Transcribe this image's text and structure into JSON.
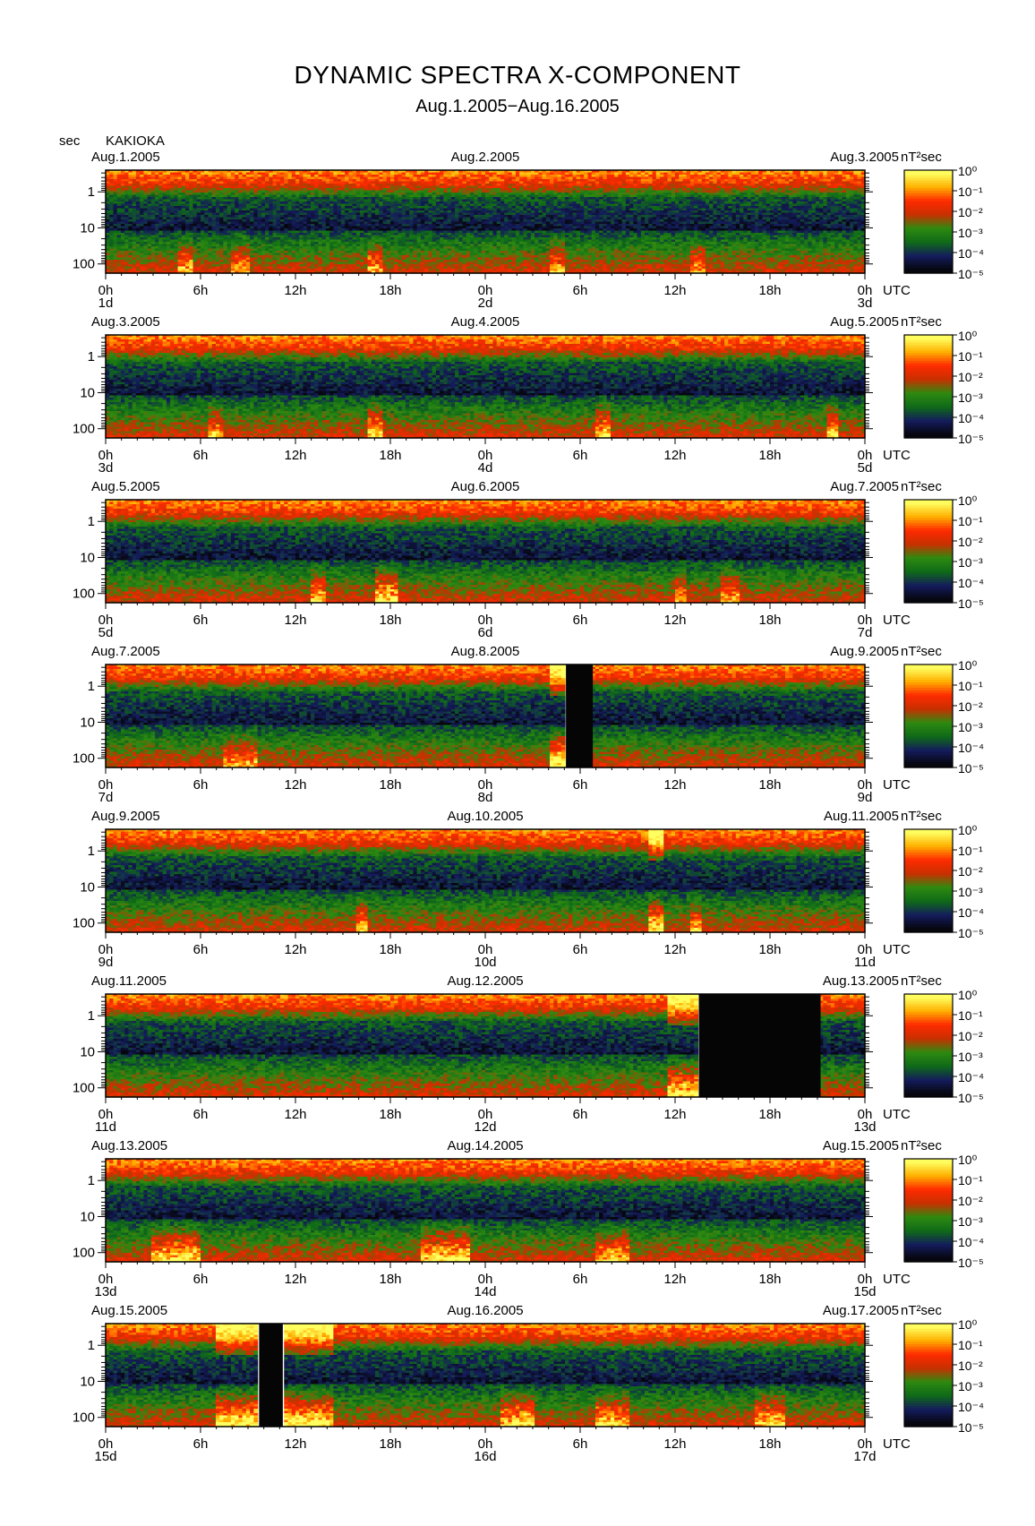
{
  "title": "DYNAMIC SPECTRA X-COMPONENT",
  "subtitle": "Aug.1.2005−Aug.16.2005",
  "y_unit": "sec",
  "station": "KAKIOKA",
  "colorbar_unit": "nT²sec",
  "x_suffix": "UTC",
  "chart_data": {
    "type": "heatmap",
    "title": "DYNAMIC SPECTRA X-COMPONENT",
    "subtitle": "Aug.1.2005−Aug.16.2005",
    "ylabel": "sec",
    "y_scale": "log",
    "y_ticks": [
      "1",
      "10",
      "100"
    ],
    "x_ticks": [
      "0h",
      "6h",
      "12h",
      "18h",
      "0h",
      "6h",
      "12h",
      "18h",
      "0h"
    ],
    "colorbar": {
      "unit": "nT²sec",
      "scale": "log",
      "labels": [
        "10⁰",
        "10⁻¹",
        "10⁻²",
        "10⁻³",
        "10⁻⁴",
        "10⁻⁵"
      ],
      "colors": [
        "#ffff60",
        "#ffb000",
        "#ff2a00",
        "#c83000",
        "#2e8a10",
        "#0f6a18",
        "#141c5c",
        "#06060e"
      ]
    },
    "panels": [
      {
        "start_label": "Aug.1.2005",
        "mid_label": "Aug.2.2005",
        "end_label": "Aug.3.2005",
        "day_labels": [
          "1d",
          "2d",
          "3d"
        ],
        "gaps": [],
        "events": [
          [
            4.5,
            5.5,
            0.7
          ],
          [
            8,
            9,
            0.6
          ],
          [
            16.5,
            17.5,
            0.7
          ],
          [
            28,
            29,
            0.6
          ],
          [
            37,
            38,
            0.6
          ]
        ]
      },
      {
        "start_label": "Aug.3.2005",
        "mid_label": "Aug.4.2005",
        "end_label": "Aug.5.2005",
        "day_labels": [
          "3d",
          "4d",
          "5d"
        ],
        "gaps": [],
        "events": [
          [
            6.5,
            7.5,
            0.6
          ],
          [
            16.5,
            17.5,
            0.9
          ],
          [
            31,
            31.8,
            0.8
          ],
          [
            45.5,
            46.3,
            0.8
          ]
        ]
      },
      {
        "start_label": "Aug.5.2005",
        "mid_label": "Aug.6.2005",
        "end_label": "Aug.7.2005",
        "day_labels": [
          "5d",
          "6d",
          "7d"
        ],
        "gaps": [],
        "events": [
          [
            13,
            13.8,
            0.7
          ],
          [
            17,
            18.5,
            0.9
          ],
          [
            36,
            36.8,
            0.6
          ],
          [
            39,
            40,
            0.6
          ]
        ]
      },
      {
        "start_label": "Aug.7.2005",
        "mid_label": "Aug.8.2005",
        "end_label": "Aug.9.2005",
        "day_labels": [
          "7d",
          "8d",
          "9d"
        ],
        "gaps": [
          [
            29.1,
            30.8
          ]
        ],
        "events": [
          [
            7.5,
            9.5,
            0.6
          ],
          [
            28,
            29,
            1.0
          ]
        ]
      },
      {
        "start_label": "Aug.9.2005",
        "mid_label": "Aug.10.2005",
        "end_label": "Aug.11.2005",
        "day_labels": [
          "9d",
          "10d",
          "11d"
        ],
        "gaps": [],
        "events": [
          [
            15.8,
            16.5,
            0.7
          ],
          [
            34.3,
            35.3,
            1.0
          ],
          [
            37,
            37.6,
            0.7
          ]
        ]
      },
      {
        "start_label": "Aug.11.2005",
        "mid_label": "Aug.12.2005",
        "end_label": "Aug.13.2005",
        "day_labels": [
          "11d",
          "12d",
          "13d"
        ],
        "gaps": [
          [
            37.5,
            45.2
          ]
        ],
        "events": [
          [
            35.5,
            37.5,
            1.0
          ]
        ]
      },
      {
        "start_label": "Aug.13.2005",
        "mid_label": "Aug.14.2005",
        "end_label": "Aug.15.2005",
        "day_labels": [
          "13d",
          "14d",
          "15d"
        ],
        "gaps": [],
        "events": [
          [
            3,
            6,
            0.9
          ],
          [
            20,
            23,
            0.9
          ],
          [
            31,
            33,
            0.7
          ]
        ]
      },
      {
        "start_label": "Aug.15.2005",
        "mid_label": "Aug.16.2005",
        "end_label": "Aug.17.2005",
        "day_labels": [
          "15d",
          "16d",
          "17d"
        ],
        "gaps": [
          [
            9.7,
            11.2
          ]
        ],
        "events": [
          [
            7,
            9.7,
            1.0
          ],
          [
            11.2,
            14.5,
            1.0
          ],
          [
            25,
            27,
            0.9
          ],
          [
            31,
            33,
            0.8
          ],
          [
            41,
            43,
            0.8
          ]
        ]
      }
    ]
  }
}
